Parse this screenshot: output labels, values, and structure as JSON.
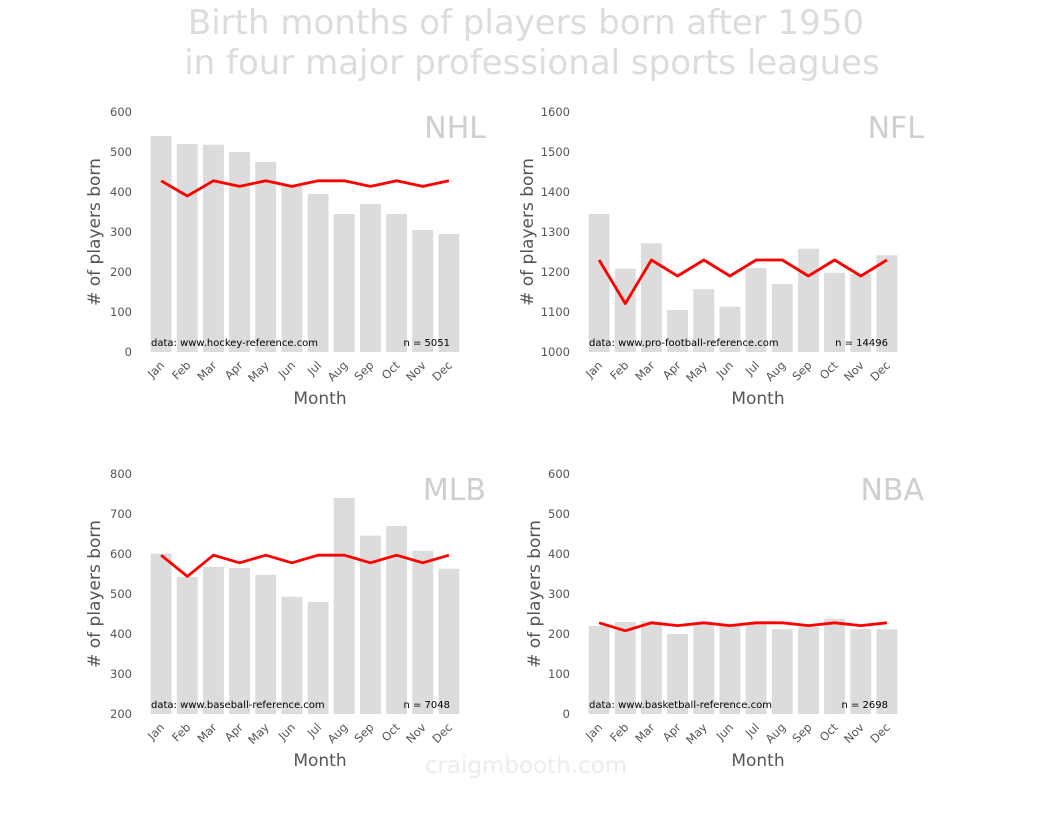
{
  "page": {
    "title_line1": "Birth months of players born after 1950",
    "title_line2": "in four major professional sports leagues",
    "watermark": "craigmbooth.com"
  },
  "colors": {
    "bar": "#dcdcdc",
    "line": "#ff0000"
  },
  "chart_data": [
    {
      "type": "bar",
      "league": "NHL",
      "categories": [
        "Jan",
        "Feb",
        "Mar",
        "Apr",
        "May",
        "Jun",
        "Jul",
        "Aug",
        "Sep",
        "Oct",
        "Nov",
        "Dec"
      ],
      "values": [
        540,
        520,
        518,
        500,
        475,
        415,
        395,
        345,
        370,
        345,
        305,
        295
      ],
      "expected": [
        428,
        390,
        428,
        414,
        428,
        414,
        428,
        428,
        414,
        428,
        414,
        428
      ],
      "ylim": [
        0,
        600
      ],
      "yticks": [
        0,
        100,
        200,
        300,
        400,
        500,
        600
      ],
      "xlabel": "Month",
      "ylabel": "# of players born",
      "source": "data: www.hockey-reference.com",
      "n_label": "n = 5051"
    },
    {
      "type": "bar",
      "league": "NFL",
      "categories": [
        "Jan",
        "Feb",
        "Mar",
        "Apr",
        "May",
        "Jun",
        "Jul",
        "Aug",
        "Sep",
        "Oct",
        "Nov",
        "Dec"
      ],
      "values": [
        1345,
        1208,
        1272,
        1105,
        1157,
        1113,
        1210,
        1170,
        1258,
        1198,
        1195,
        1242
      ],
      "expected": [
        1230,
        1121,
        1230,
        1190,
        1230,
        1190,
        1230,
        1230,
        1190,
        1230,
        1190,
        1230
      ],
      "ylim": [
        1000,
        1600
      ],
      "yticks": [
        1000,
        1100,
        1200,
        1300,
        1400,
        1500,
        1600
      ],
      "xlabel": "Month",
      "ylabel": "# of players born",
      "source": "data: www.pro-football-reference.com",
      "n_label": "n = 14496"
    },
    {
      "type": "bar",
      "league": "MLB",
      "categories": [
        "Jan",
        "Feb",
        "Mar",
        "Apr",
        "May",
        "Jun",
        "Jul",
        "Aug",
        "Sep",
        "Oct",
        "Nov",
        "Dec"
      ],
      "values": [
        601,
        543,
        568,
        565,
        548,
        493,
        480,
        740,
        646,
        670,
        608,
        563
      ],
      "expected": [
        597,
        544,
        597,
        578,
        597,
        578,
        597,
        597,
        578,
        597,
        578,
        597
      ],
      "ylim": [
        200,
        800
      ],
      "yticks": [
        200,
        300,
        400,
        500,
        600,
        700,
        800
      ],
      "xlabel": "Month",
      "ylabel": "# of players born",
      "source": "data: www.baseball-reference.com",
      "n_label": "n = 7048"
    },
    {
      "type": "bar",
      "league": "NBA",
      "categories": [
        "Jan",
        "Feb",
        "Mar",
        "Apr",
        "May",
        "Jun",
        "Jul",
        "Aug",
        "Sep",
        "Oct",
        "Nov",
        "Dec"
      ],
      "values": [
        220,
        230,
        232,
        200,
        225,
        222,
        228,
        212,
        218,
        238,
        212,
        212
      ],
      "expected": [
        228,
        208,
        228,
        221,
        228,
        221,
        228,
        228,
        221,
        228,
        221,
        228
      ],
      "ylim": [
        0,
        600
      ],
      "yticks": [
        0,
        100,
        200,
        300,
        400,
        500,
        600
      ],
      "xlabel": "Month",
      "ylabel": "# of players born",
      "source": "data: www.basketball-reference.com",
      "n_label": "n = 2698"
    }
  ]
}
